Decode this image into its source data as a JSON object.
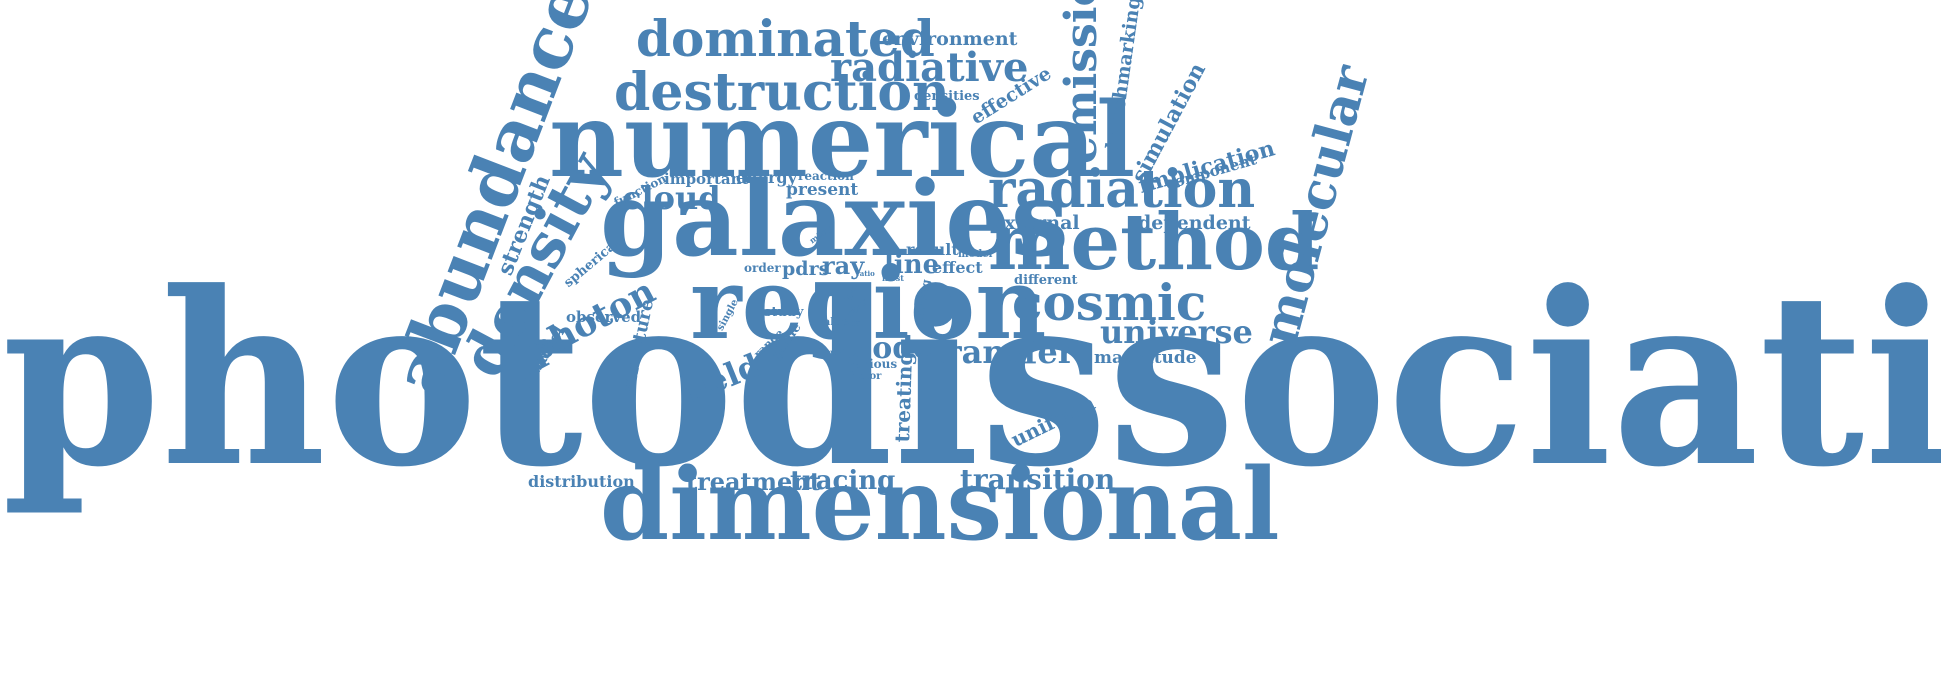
{
  "cloud": {
    "color": "#4a82b4",
    "words": [
      "photodissociation",
      "dimensional",
      "numerical",
      "galaxies",
      "region",
      "method",
      "radiation",
      "abundance",
      "density",
      "molecular",
      "cosmic",
      "destruction",
      "dominated",
      "radiative",
      "emission",
      "photon",
      "transfer",
      "universe",
      "code",
      "field",
      "cloud",
      "transition",
      "tracing",
      "treatment",
      "implication",
      "simulation",
      "benchmarking",
      "external",
      "dependent",
      "strength",
      "structure",
      "treating",
      "uniform",
      "distribution",
      "magnitude",
      "line",
      "ray",
      "pdrs",
      "result",
      "effect",
      "present",
      "important",
      "energy",
      "reaction",
      "function",
      "environment",
      "densities",
      "effective",
      "component",
      "spherical",
      "parallel",
      "observed",
      "study",
      "order",
      "different",
      "various",
      "factor",
      "single",
      "range",
      "plane",
      "value",
      "span",
      "star",
      "strong",
      "model",
      "milky",
      "ratio",
      "most",
      "time",
      "flux"
    ]
  }
}
